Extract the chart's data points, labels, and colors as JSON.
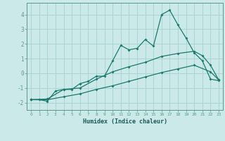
{
  "xlabel": "Humidex (Indice chaleur)",
  "bg_color": "#cce9e9",
  "grid_color": "#aad4d4",
  "line_color": "#1a7a6e",
  "spine_color": "#5a9a8a",
  "x_ticks": [
    0,
    1,
    2,
    3,
    4,
    5,
    6,
    7,
    8,
    9,
    10,
    11,
    12,
    13,
    14,
    15,
    16,
    17,
    18,
    19,
    20,
    21,
    22,
    23
  ],
  "ylim": [
    -2.5,
    4.8
  ],
  "xlim": [
    -0.5,
    23.5
  ],
  "yticks": [
    -2,
    -1,
    0,
    1,
    2,
    3,
    4
  ],
  "series1": {
    "x": [
      0,
      1,
      2,
      3,
      4,
      5,
      6,
      7,
      8,
      9,
      10,
      11,
      12,
      13,
      14,
      15,
      16,
      17,
      18,
      19,
      20,
      21,
      22,
      23
    ],
    "y": [
      -1.8,
      -1.8,
      -1.9,
      -1.2,
      -1.1,
      -1.1,
      -0.7,
      -0.55,
      -0.2,
      -0.2,
      0.85,
      1.9,
      1.6,
      1.7,
      2.3,
      1.85,
      4.0,
      4.3,
      3.3,
      2.4,
      1.4,
      0.85,
      -0.4,
      -0.5
    ]
  },
  "series2": {
    "x": [
      0,
      2,
      4,
      6,
      8,
      10,
      12,
      14,
      16,
      18,
      20,
      21,
      22,
      23
    ],
    "y": [
      -1.8,
      -1.75,
      -1.1,
      -1.0,
      -0.4,
      0.1,
      0.45,
      0.75,
      1.15,
      1.35,
      1.5,
      1.2,
      0.55,
      -0.45
    ]
  },
  "series3": {
    "x": [
      0,
      2,
      4,
      6,
      8,
      10,
      12,
      14,
      16,
      18,
      20,
      22,
      23
    ],
    "y": [
      -1.8,
      -1.8,
      -1.6,
      -1.4,
      -1.1,
      -0.85,
      -0.55,
      -0.25,
      0.05,
      0.3,
      0.55,
      0.1,
      -0.45
    ]
  }
}
